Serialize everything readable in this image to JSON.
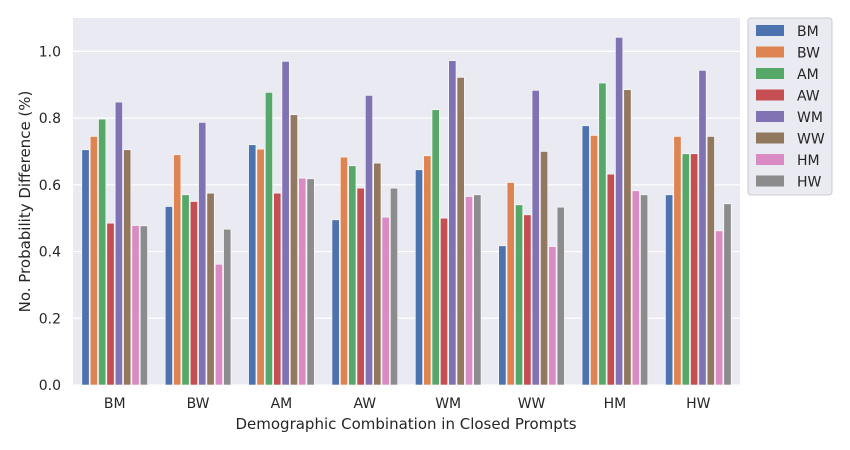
{
  "chart_data": {
    "type": "bar",
    "title": "",
    "xlabel": "Demographic Combination in Closed Prompts",
    "ylabel": "No. Probability Difference (%)",
    "ylim": [
      0,
      1.1
    ],
    "yticks": [
      0.0,
      0.2,
      0.4,
      0.6,
      0.8,
      1.0
    ],
    "grid": true,
    "legend_position": "outside top-right",
    "categories": [
      "BM",
      "BW",
      "AM",
      "AW",
      "WM",
      "WW",
      "HM",
      "HW"
    ],
    "series": [
      {
        "name": "BM",
        "color": "#4c72b0",
        "values": [
          0.705,
          0.535,
          0.72,
          0.495,
          0.645,
          0.417,
          0.777,
          0.57
        ]
      },
      {
        "name": "BW",
        "color": "#dd8452",
        "values": [
          0.745,
          0.69,
          0.707,
          0.683,
          0.687,
          0.607,
          0.748,
          0.745
        ]
      },
      {
        "name": "AM",
        "color": "#55a868",
        "values": [
          0.797,
          0.57,
          0.877,
          0.657,
          0.825,
          0.54,
          0.905,
          0.693
        ]
      },
      {
        "name": "AW",
        "color": "#c44e52",
        "values": [
          0.485,
          0.55,
          0.575,
          0.59,
          0.5,
          0.51,
          0.632,
          0.693
        ]
      },
      {
        "name": "WM",
        "color": "#8172b3",
        "values": [
          0.848,
          0.787,
          0.97,
          0.868,
          0.972,
          0.883,
          1.042,
          0.943
        ]
      },
      {
        "name": "WW",
        "color": "#937860",
        "values": [
          0.705,
          0.575,
          0.81,
          0.665,
          0.922,
          0.7,
          0.885,
          0.745
        ]
      },
      {
        "name": "HM",
        "color": "#da8bc3",
        "values": [
          0.478,
          0.362,
          0.62,
          0.503,
          0.565,
          0.415,
          0.582,
          0.462
        ]
      },
      {
        "name": "HW",
        "color": "#8c8c8c",
        "values": [
          0.477,
          0.467,
          0.618,
          0.59,
          0.57,
          0.533,
          0.57,
          0.543
        ]
      }
    ]
  }
}
